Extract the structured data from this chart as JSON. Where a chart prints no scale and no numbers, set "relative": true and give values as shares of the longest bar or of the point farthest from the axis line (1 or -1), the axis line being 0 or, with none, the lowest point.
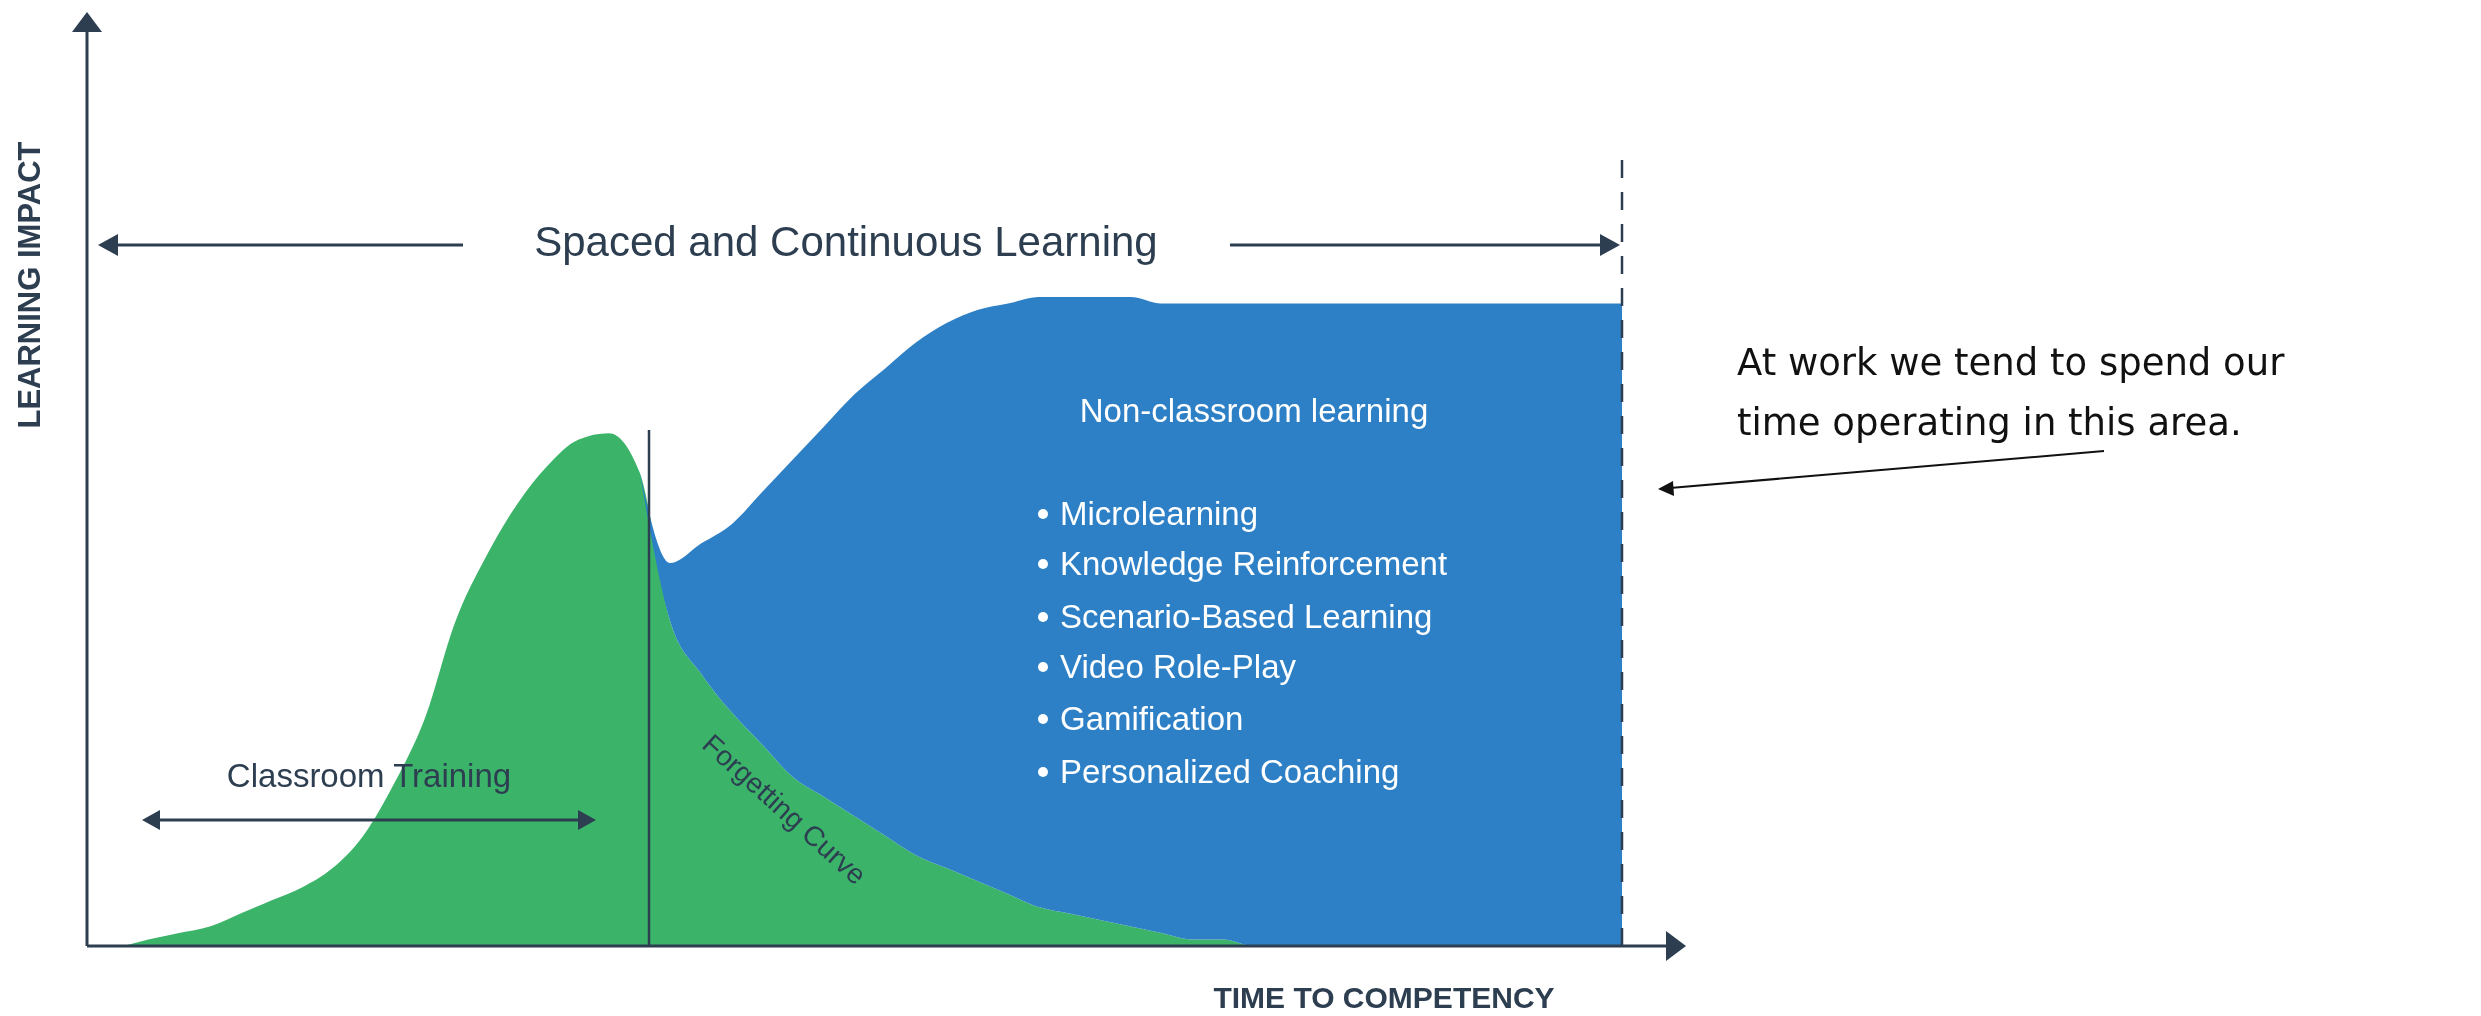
{
  "chart_data": {
    "type": "area",
    "relative": true,
    "stacked": true,
    "xlabel": "TIME TO COMPETENCY",
    "ylabel": "LEARNING IMPACT",
    "categories": [
      null,
      null,
      null,
      null,
      null,
      null,
      null,
      null,
      null,
      null,
      null,
      null,
      null,
      null,
      null,
      null,
      null,
      null,
      null,
      null,
      null,
      null,
      null,
      null,
      null,
      null,
      null,
      null,
      null,
      null,
      null,
      null,
      null,
      null,
      null,
      null,
      null,
      null,
      null,
      null,
      null,
      null,
      null,
      null,
      null,
      null,
      null,
      null,
      null,
      null,
      null
    ],
    "series": [
      {
        "color": "#3bb46a",
        "values": [
          0,
          0,
          0.01,
          0.02,
          0.03,
          0.05,
          0.07,
          0.09,
          0.12,
          0.17,
          0.25,
          0.35,
          0.5,
          0.6,
          0.68,
          0.74,
          0.78,
          0.79,
          0.73,
          0.5,
          0.42,
          0.36,
          0.31,
          0.26,
          0.23,
          0.2,
          0.17,
          0.14,
          0.12,
          0.1,
          0.08,
          0.06,
          0.05,
          0.04,
          0.03,
          0.02,
          0.01,
          0.01,
          0,
          0,
          0,
          0,
          0,
          0,
          0,
          0,
          0,
          0,
          0,
          0,
          0
        ]
      },
      {
        "color": "#2e80c6",
        "values": [
          null,
          null,
          null,
          null,
          null,
          null,
          null,
          null,
          null,
          null,
          null,
          null,
          null,
          null,
          null,
          null,
          null,
          null,
          0,
          0.09,
          0.2,
          0.29,
          0.39,
          0.49,
          0.57,
          0.65,
          0.72,
          0.79,
          0.84,
          0.88,
          0.91,
          0.94,
          0.95,
          0.96,
          0.97,
          0.97,
          0.98,
          0.98,
          0.99,
          0.99,
          0.99,
          0.99,
          0.99,
          0.99,
          0.99,
          0.99,
          0.99,
          0.99,
          0.99,
          0.99,
          0.99
        ]
      }
    ],
    "annotations": [
      "Spaced and Continuous Learning",
      "Classroom Training",
      "Forgetting Curve",
      "Non-classroom learning",
      "Microlearning",
      "Knowledge Reinforcement",
      "Scenario-Based Learning",
      "Video Role-Play",
      "Gamification",
      "Personalized Coaching",
      "At work we tend to spend our time operating in this area."
    ]
  }
}
